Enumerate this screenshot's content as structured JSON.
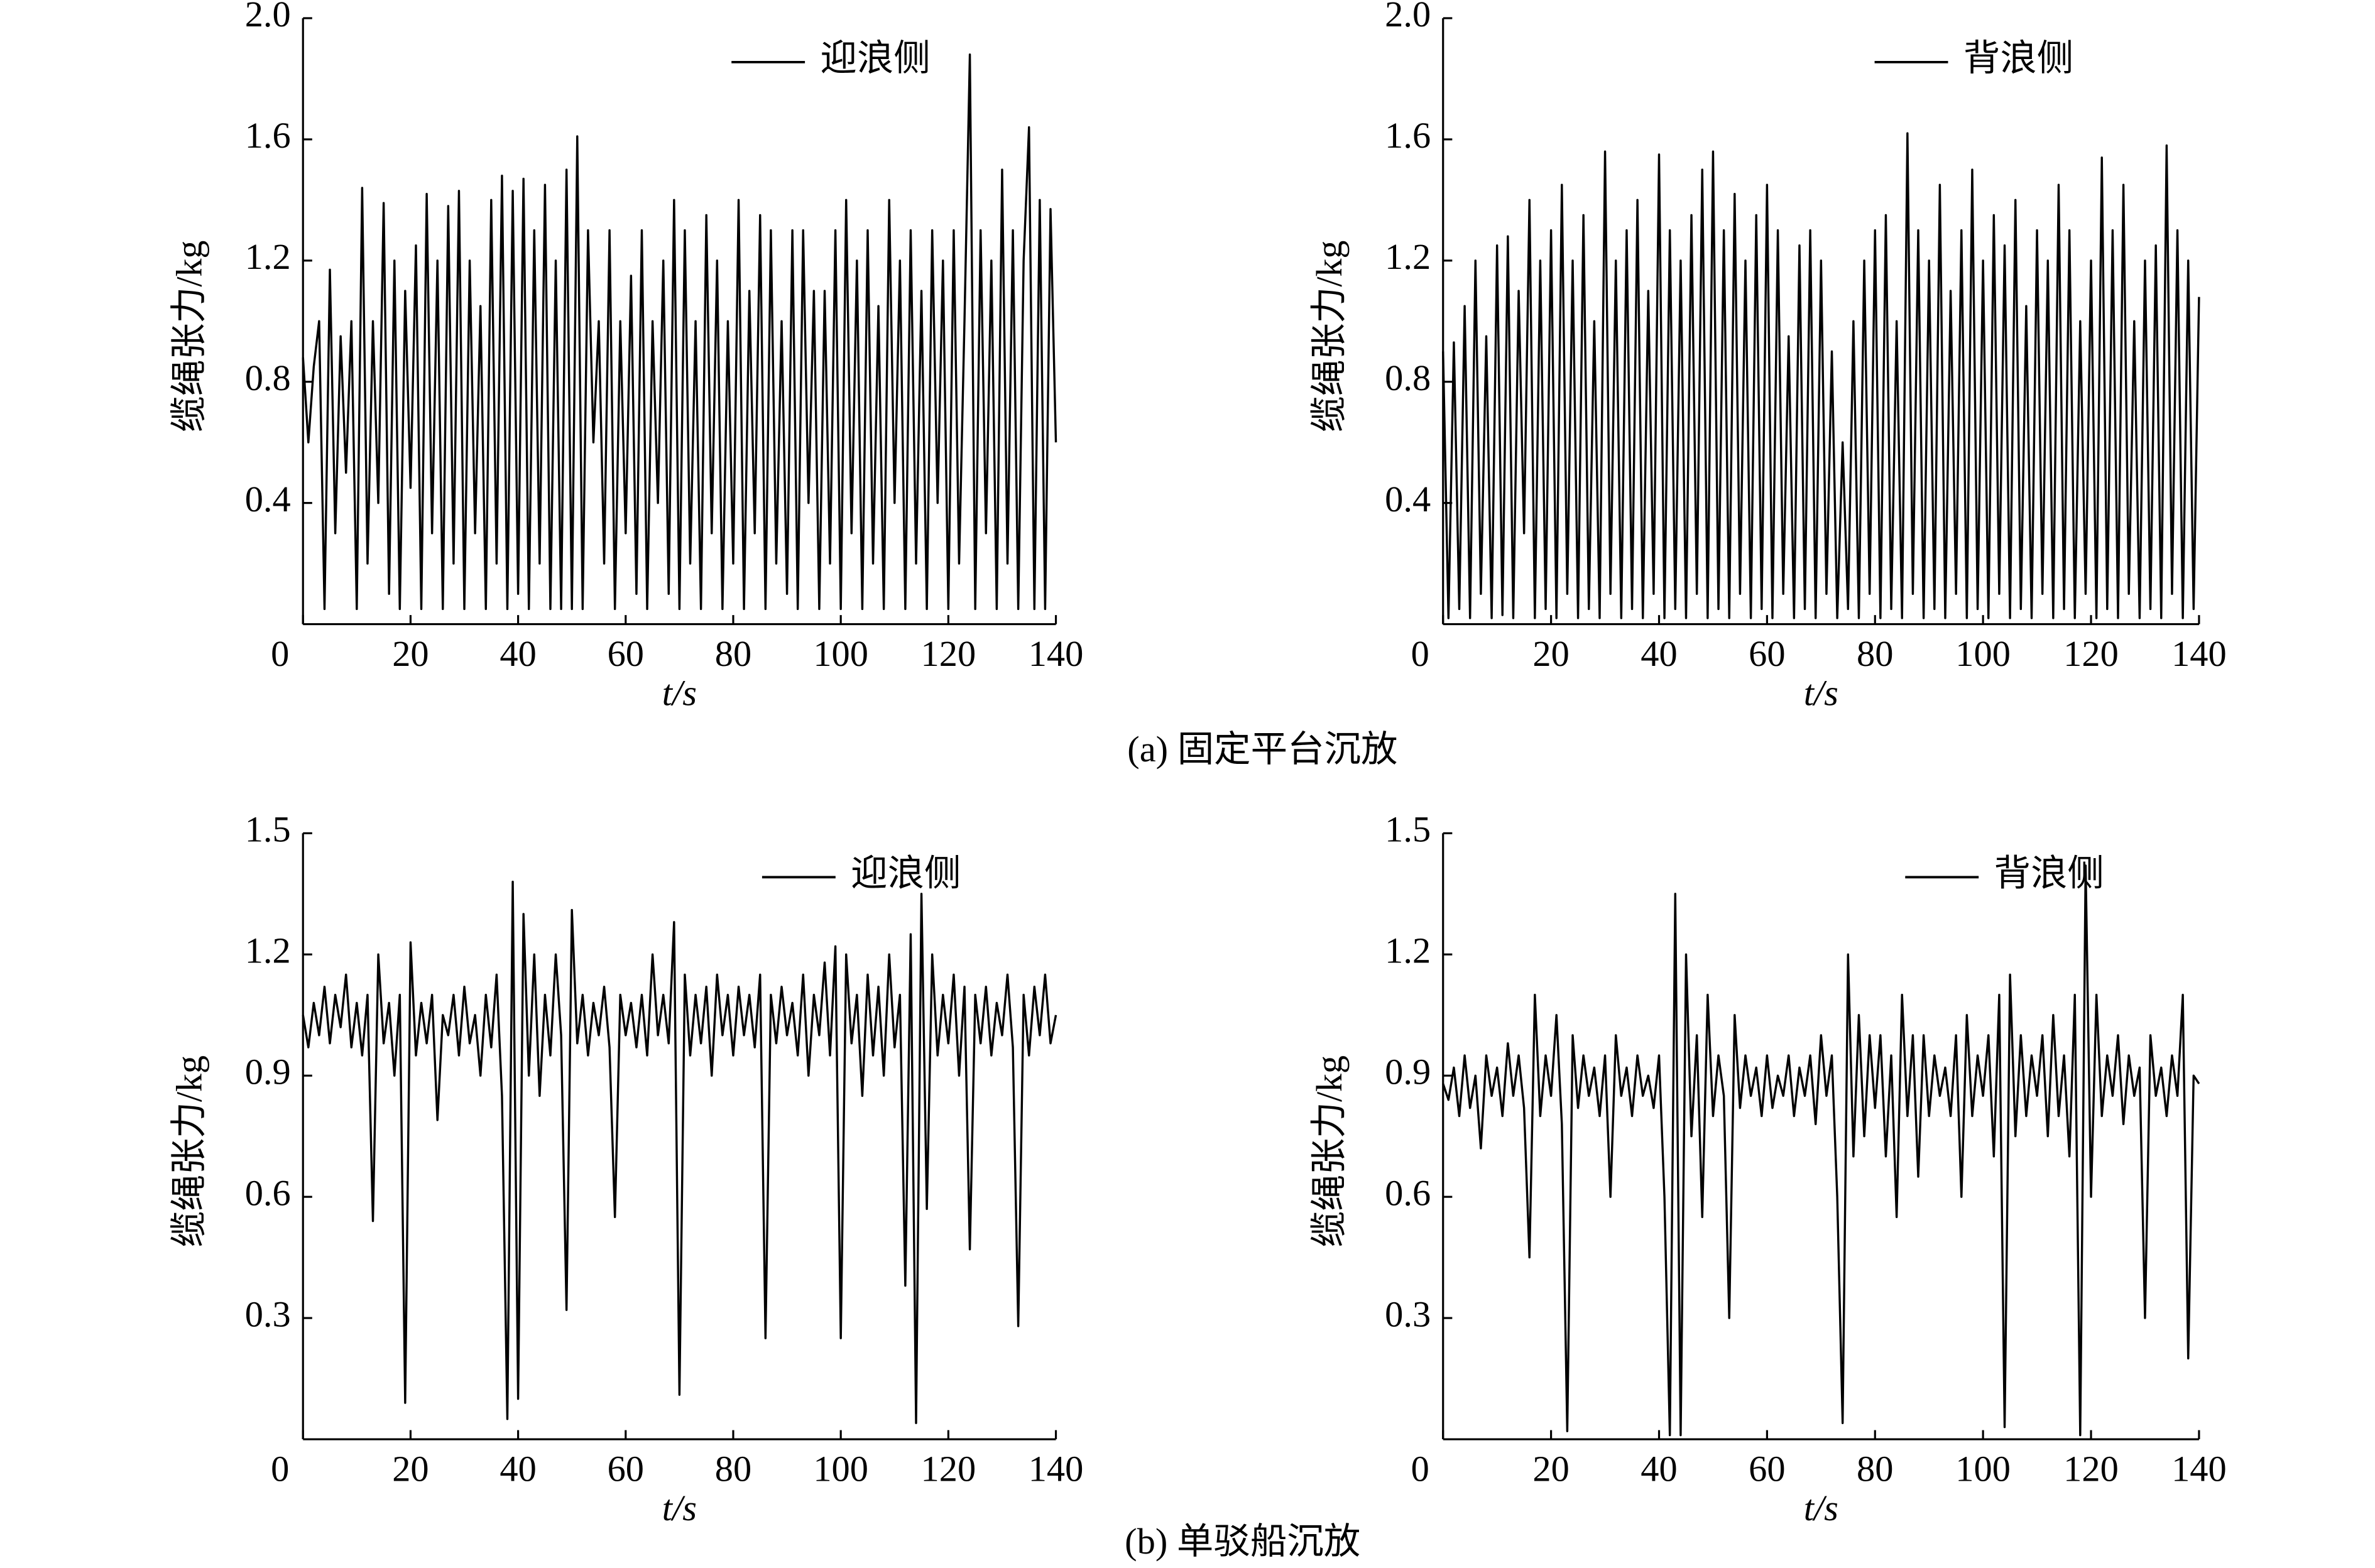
{
  "chart_data": [
    {
      "type": "line",
      "xlabel": "t/s",
      "ylabel": "缆绳张力/kg",
      "legend": "upper right",
      "xlim": [
        0,
        140
      ],
      "ylim": [
        0,
        2
      ],
      "xticks": [
        0,
        20,
        40,
        60,
        80,
        100,
        120,
        140
      ],
      "yticks": [
        0.4,
        0.8,
        1.2,
        1.6,
        {
          "value": 2,
          "label": "2.0"
        }
      ],
      "x": [
        0,
        1,
        2,
        3,
        4,
        5,
        6,
        7,
        8,
        9,
        10,
        11,
        12,
        13,
        14,
        15,
        16,
        17,
        18,
        19,
        20,
        21,
        22,
        23,
        24,
        25,
        26,
        27,
        28,
        29,
        30,
        31,
        32,
        33,
        34,
        35,
        36,
        37,
        38,
        39,
        40,
        41,
        42,
        43,
        44,
        45,
        46,
        47,
        48,
        49,
        50,
        51,
        52,
        53,
        54,
        55,
        56,
        57,
        58,
        59,
        60,
        61,
        62,
        63,
        64,
        65,
        66,
        67,
        68,
        69,
        70,
        71,
        72,
        73,
        74,
        75,
        76,
        77,
        78,
        79,
        80,
        81,
        82,
        83,
        84,
        85,
        86,
        87,
        88,
        89,
        90,
        91,
        92,
        93,
        94,
        95,
        96,
        97,
        98,
        99,
        100,
        101,
        102,
        103,
        104,
        105,
        106,
        107,
        108,
        109,
        110,
        111,
        112,
        113,
        114,
        115,
        116,
        117,
        118,
        119,
        120,
        121,
        122,
        123,
        124,
        125,
        126,
        127,
        128,
        129,
        130,
        131,
        132,
        133,
        134,
        135,
        136,
        137,
        138,
        139,
        140
      ],
      "series": [
        {
          "name": "迎浪侧",
          "color": "#000000",
          "values": [
            0.88,
            0.6,
            0.85,
            1.0,
            0.05,
            1.17,
            0.3,
            0.95,
            0.5,
            1.0,
            0.05,
            1.44,
            0.2,
            1.0,
            0.4,
            1.39,
            0.1,
            1.2,
            0.05,
            1.1,
            0.45,
            1.25,
            0.05,
            1.42,
            0.3,
            1.2,
            0.05,
            1.38,
            0.2,
            1.43,
            0.05,
            1.2,
            0.3,
            1.05,
            0.05,
            1.4,
            0.2,
            1.48,
            0.05,
            1.43,
            0.1,
            1.47,
            0.05,
            1.3,
            0.2,
            1.45,
            0.05,
            1.2,
            0.05,
            1.5,
            0.05,
            1.61,
            0.05,
            1.3,
            0.6,
            1.0,
            0.2,
            1.3,
            0.05,
            1.0,
            0.3,
            1.15,
            0.1,
            1.3,
            0.05,
            1.0,
            0.4,
            1.2,
            0.1,
            1.4,
            0.05,
            1.3,
            0.2,
            1.0,
            0.05,
            1.35,
            0.3,
            1.2,
            0.05,
            1.0,
            0.2,
            1.4,
            0.05,
            1.1,
            0.3,
            1.35,
            0.05,
            1.3,
            0.2,
            1.0,
            0.1,
            1.3,
            0.05,
            1.3,
            0.4,
            1.1,
            0.05,
            1.1,
            0.2,
            1.3,
            0.05,
            1.4,
            0.3,
            1.2,
            0.05,
            1.3,
            0.2,
            1.05,
            0.05,
            1.4,
            0.4,
            1.2,
            0.05,
            1.3,
            0.2,
            1.1,
            0.05,
            1.3,
            0.4,
            1.2,
            0.05,
            1.3,
            0.2,
            1.0,
            1.88,
            0.05,
            1.3,
            0.3,
            1.2,
            0.05,
            1.5,
            0.2,
            1.3,
            0.05,
            1.2,
            1.64,
            0.05,
            1.4,
            0.05,
            1.37,
            0.6
          ]
        }
      ]
    },
    {
      "type": "line",
      "xlabel": "t/s",
      "ylabel": "缆绳张力/kg",
      "legend": "upper right",
      "xlim": [
        0,
        140
      ],
      "ylim": [
        0,
        2
      ],
      "xticks": [
        0,
        20,
        40,
        60,
        80,
        100,
        120,
        140
      ],
      "yticks": [
        0.4,
        0.8,
        1.2,
        1.6,
        {
          "value": 2,
          "label": "2.0"
        }
      ],
      "x": [
        0,
        1,
        2,
        3,
        4,
        5,
        6,
        7,
        8,
        9,
        10,
        11,
        12,
        13,
        14,
        15,
        16,
        17,
        18,
        19,
        20,
        21,
        22,
        23,
        24,
        25,
        26,
        27,
        28,
        29,
        30,
        31,
        32,
        33,
        34,
        35,
        36,
        37,
        38,
        39,
        40,
        41,
        42,
        43,
        44,
        45,
        46,
        47,
        48,
        49,
        50,
        51,
        52,
        53,
        54,
        55,
        56,
        57,
        58,
        59,
        60,
        61,
        62,
        63,
        64,
        65,
        66,
        67,
        68,
        69,
        70,
        71,
        72,
        73,
        74,
        75,
        76,
        77,
        78,
        79,
        80,
        81,
        82,
        83,
        84,
        85,
        86,
        87,
        88,
        89,
        90,
        91,
        92,
        93,
        94,
        95,
        96,
        97,
        98,
        99,
        100,
        101,
        102,
        103,
        104,
        105,
        106,
        107,
        108,
        109,
        110,
        111,
        112,
        113,
        114,
        115,
        116,
        117,
        118,
        119,
        120,
        121,
        122,
        123,
        124,
        125,
        126,
        127,
        128,
        129,
        130,
        131,
        132,
        133,
        134,
        135,
        136,
        137,
        138,
        139,
        140
      ],
      "series": [
        {
          "name": "背浪侧",
          "color": "#000000",
          "values": [
            0.9,
            0.02,
            0.93,
            0.05,
            1.05,
            0.02,
            1.2,
            0.1,
            0.95,
            0.02,
            1.25,
            0.03,
            1.28,
            0.02,
            1.1,
            0.3,
            1.4,
            0.02,
            1.2,
            0.05,
            1.3,
            0.02,
            1.45,
            0.1,
            1.2,
            0.02,
            1.35,
            0.05,
            1.0,
            0.02,
            1.56,
            0.1,
            1.2,
            0.02,
            1.3,
            0.05,
            1.4,
            0.02,
            1.1,
            0.1,
            1.55,
            0.02,
            1.3,
            0.05,
            1.2,
            0.02,
            1.35,
            0.1,
            1.5,
            0.02,
            1.56,
            0.05,
            1.3,
            0.02,
            1.42,
            0.1,
            1.2,
            0.02,
            1.35,
            0.05,
            1.45,
            0.02,
            1.3,
            0.1,
            0.95,
            0.02,
            1.25,
            0.05,
            1.3,
            0.02,
            1.2,
            0.1,
            0.9,
            0.02,
            0.6,
            0.05,
            1.0,
            0.02,
            1.2,
            0.1,
            1.3,
            0.02,
            1.35,
            0.05,
            1.0,
            0.02,
            1.62,
            0.1,
            1.3,
            0.02,
            1.2,
            0.05,
            1.45,
            0.02,
            1.1,
            0.1,
            1.3,
            0.02,
            1.5,
            0.05,
            1.2,
            0.02,
            1.35,
            0.1,
            1.25,
            0.02,
            1.4,
            0.05,
            1.05,
            0.02,
            1.3,
            0.1,
            1.2,
            0.02,
            1.45,
            0.05,
            1.3,
            0.02,
            1.0,
            0.1,
            1.2,
            0.02,
            1.54,
            0.05,
            1.3,
            0.02,
            1.45,
            0.1,
            1.0,
            0.02,
            1.2,
            0.05,
            1.25,
            0.02,
            1.58,
            0.1,
            1.3,
            0.02,
            1.2,
            0.05,
            1.08
          ]
        }
      ]
    },
    {
      "type": "line",
      "xlabel": "t/s",
      "ylabel": "缆绳张力/kg",
      "legend": "upper right",
      "xlim": [
        0,
        140
      ],
      "ylim": [
        0,
        1.5
      ],
      "xticks": [
        0,
        20,
        40,
        60,
        80,
        100,
        120,
        140
      ],
      "yticks": [
        0.3,
        0.6,
        0.9,
        1.2,
        1.5
      ],
      "x": [
        0,
        1,
        2,
        3,
        4,
        5,
        6,
        7,
        8,
        9,
        10,
        11,
        12,
        13,
        14,
        15,
        16,
        17,
        18,
        19,
        20,
        21,
        22,
        23,
        24,
        25,
        26,
        27,
        28,
        29,
        30,
        31,
        32,
        33,
        34,
        35,
        36,
        37,
        38,
        39,
        40,
        41,
        42,
        43,
        44,
        45,
        46,
        47,
        48,
        49,
        50,
        51,
        52,
        53,
        54,
        55,
        56,
        57,
        58,
        59,
        60,
        61,
        62,
        63,
        64,
        65,
        66,
        67,
        68,
        69,
        70,
        71,
        72,
        73,
        74,
        75,
        76,
        77,
        78,
        79,
        80,
        81,
        82,
        83,
        84,
        85,
        86,
        87,
        88,
        89,
        90,
        91,
        92,
        93,
        94,
        95,
        96,
        97,
        98,
        99,
        100,
        101,
        102,
        103,
        104,
        105,
        106,
        107,
        108,
        109,
        110,
        111,
        112,
        113,
        114,
        115,
        116,
        117,
        118,
        119,
        120,
        121,
        122,
        123,
        124,
        125,
        126,
        127,
        128,
        129,
        130,
        131,
        132,
        133,
        134,
        135,
        136,
        137,
        138,
        139,
        140
      ],
      "series": [
        {
          "name": "迎浪侧",
          "color": "#000000",
          "values": [
            1.05,
            0.97,
            1.08,
            1.0,
            1.12,
            0.98,
            1.1,
            1.02,
            1.15,
            0.97,
            1.08,
            0.95,
            1.1,
            0.54,
            1.2,
            0.98,
            1.08,
            0.9,
            1.1,
            0.09,
            1.23,
            0.95,
            1.08,
            0.98,
            1.1,
            0.79,
            1.05,
            1.0,
            1.1,
            0.95,
            1.12,
            0.98,
            1.05,
            0.9,
            1.1,
            0.97,
            1.15,
            0.85,
            0.05,
            1.38,
            0.1,
            1.3,
            0.9,
            1.2,
            0.85,
            1.1,
            0.95,
            1.2,
            1.0,
            0.32,
            1.31,
            0.98,
            1.1,
            0.95,
            1.08,
            1.0,
            1.12,
            0.97,
            0.55,
            1.1,
            1.0,
            1.08,
            0.97,
            1.1,
            0.95,
            1.2,
            1.0,
            1.1,
            0.98,
            1.28,
            0.11,
            1.15,
            0.95,
            1.1,
            0.98,
            1.12,
            0.9,
            1.15,
            1.0,
            1.1,
            0.95,
            1.12,
            1.0,
            1.1,
            0.97,
            1.15,
            0.25,
            1.1,
            0.98,
            1.12,
            1.0,
            1.08,
            0.95,
            1.15,
            0.9,
            1.1,
            1.0,
            1.18,
            0.95,
            1.22,
            0.25,
            1.2,
            0.98,
            1.1,
            0.85,
            1.15,
            0.95,
            1.12,
            0.9,
            1.2,
            0.97,
            1.1,
            0.38,
            1.25,
            0.04,
            1.35,
            0.57,
            1.2,
            0.95,
            1.1,
            0.98,
            1.15,
            0.9,
            1.12,
            0.47,
            1.1,
            0.98,
            1.12,
            0.95,
            1.08,
            1.0,
            1.15,
            0.97,
            0.28,
            1.1,
            0.95,
            1.12,
            1.0,
            1.15,
            0.98,
            1.05
          ]
        }
      ]
    },
    {
      "type": "line",
      "xlabel": "t/s",
      "ylabel": "缆绳张力/kg",
      "legend": "upper right",
      "xlim": [
        0,
        140
      ],
      "ylim": [
        0,
        1.5
      ],
      "xticks": [
        0,
        20,
        40,
        60,
        80,
        100,
        120,
        140
      ],
      "yticks": [
        0.3,
        0.6,
        0.9,
        1.2,
        1.5
      ],
      "x": [
        0,
        1,
        2,
        3,
        4,
        5,
        6,
        7,
        8,
        9,
        10,
        11,
        12,
        13,
        14,
        15,
        16,
        17,
        18,
        19,
        20,
        21,
        22,
        23,
        24,
        25,
        26,
        27,
        28,
        29,
        30,
        31,
        32,
        33,
        34,
        35,
        36,
        37,
        38,
        39,
        40,
        41,
        42,
        43,
        44,
        45,
        46,
        47,
        48,
        49,
        50,
        51,
        52,
        53,
        54,
        55,
        56,
        57,
        58,
        59,
        60,
        61,
        62,
        63,
        64,
        65,
        66,
        67,
        68,
        69,
        70,
        71,
        72,
        73,
        74,
        75,
        76,
        77,
        78,
        79,
        80,
        81,
        82,
        83,
        84,
        85,
        86,
        87,
        88,
        89,
        90,
        91,
        92,
        93,
        94,
        95,
        96,
        97,
        98,
        99,
        100,
        101,
        102,
        103,
        104,
        105,
        106,
        107,
        108,
        109,
        110,
        111,
        112,
        113,
        114,
        115,
        116,
        117,
        118,
        119,
        120,
        121,
        122,
        123,
        124,
        125,
        126,
        127,
        128,
        129,
        130,
        131,
        132,
        133,
        134,
        135,
        136,
        137,
        138,
        139,
        140
      ],
      "series": [
        {
          "name": "背浪侧",
          "color": "#000000",
          "values": [
            0.88,
            0.84,
            0.92,
            0.8,
            0.95,
            0.82,
            0.9,
            0.72,
            0.95,
            0.85,
            0.92,
            0.8,
            0.98,
            0.85,
            0.95,
            0.82,
            0.45,
            1.1,
            0.8,
            0.95,
            0.85,
            1.05,
            0.78,
            0.02,
            1.0,
            0.82,
            0.95,
            0.85,
            0.92,
            0.8,
            0.95,
            0.6,
            1.0,
            0.85,
            0.92,
            0.8,
            0.95,
            0.85,
            0.9,
            0.82,
            0.95,
            0.6,
            0.01,
            1.35,
            0.01,
            1.2,
            0.75,
            1.0,
            0.55,
            1.1,
            0.8,
            0.95,
            0.85,
            0.3,
            1.05,
            0.82,
            0.95,
            0.85,
            0.92,
            0.8,
            0.95,
            0.82,
            0.9,
            0.85,
            0.95,
            0.8,
            0.92,
            0.85,
            0.95,
            0.78,
            1.0,
            0.85,
            0.95,
            0.6,
            0.04,
            1.2,
            0.7,
            1.05,
            0.75,
            1.0,
            0.82,
            1.0,
            0.7,
            0.95,
            0.55,
            1.1,
            0.8,
            1.0,
            0.65,
            1.0,
            0.8,
            0.95,
            0.85,
            0.92,
            0.8,
            1.0,
            0.6,
            1.05,
            0.8,
            0.95,
            0.85,
            1.0,
            0.7,
            1.1,
            0.03,
            1.15,
            0.75,
            1.0,
            0.8,
            0.95,
            0.85,
            1.0,
            0.75,
            1.05,
            0.8,
            0.95,
            0.7,
            1.1,
            0.01,
            1.42,
            0.6,
            1.1,
            0.8,
            0.95,
            0.85,
            1.0,
            0.78,
            0.95,
            0.85,
            0.92,
            0.3,
            1.0,
            0.85,
            0.92,
            0.8,
            0.95,
            0.85,
            1.1,
            0.2,
            0.9,
            0.88
          ]
        }
      ]
    }
  ],
  "captions": [
    "(a) 固定平台沉放",
    "(b) 单驳船沉放"
  ]
}
